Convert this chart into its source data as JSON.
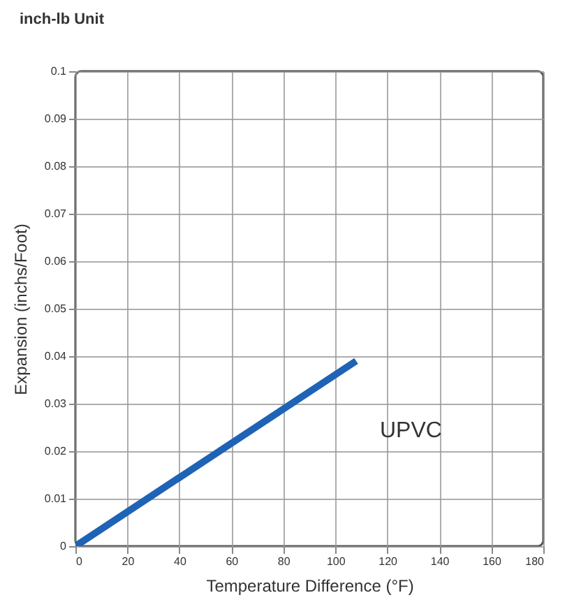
{
  "chart_data": {
    "type": "line",
    "title": "inch-lb Unit",
    "xlabel": "Temperature Difference (°F)",
    "ylabel": "Expansion (inchs/Foot)",
    "x": [
      0,
      108
    ],
    "series": [
      {
        "name": "UPVC",
        "color": "#1e63b5",
        "values": [
          0,
          0.039
        ]
      }
    ],
    "xlim": [
      0,
      180
    ],
    "xticks": [
      0,
      20,
      40,
      60,
      80,
      100,
      120,
      140,
      160,
      180
    ],
    "ylim": [
      0,
      0.1
    ],
    "yticks": [
      0,
      0.01,
      0.02,
      0.03,
      0.04,
      0.05,
      0.06,
      0.07,
      0.08,
      0.09,
      0.1
    ],
    "grid": true,
    "legend": false,
    "line_style": "solid",
    "marker": "none"
  }
}
